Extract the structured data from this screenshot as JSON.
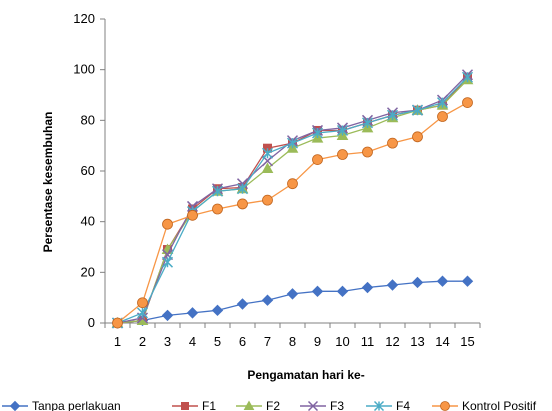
{
  "chart_data": {
    "type": "line",
    "title": "",
    "xlabel": "Pengamatan  hari ke-",
    "ylabel": "Persentase kesembuhan",
    "x": [
      1,
      2,
      3,
      4,
      5,
      6,
      7,
      8,
      9,
      10,
      11,
      12,
      13,
      14,
      15
    ],
    "ylim": [
      0,
      120
    ],
    "yticks": [
      0,
      20,
      40,
      60,
      80,
      100,
      120
    ],
    "grid": false,
    "legend_position": "bottom",
    "series": [
      {
        "name": "Tanpa perlakuan",
        "color": "#4472C4",
        "marker": "diamond",
        "values": [
          0,
          1,
          3,
          4,
          5,
          7.5,
          9,
          11.5,
          12.5,
          12.5,
          14,
          15,
          16,
          16.5,
          16.5
        ]
      },
      {
        "name": "F1",
        "color": "#C0504D",
        "marker": "square",
        "values": [
          0,
          1,
          29,
          45,
          53,
          53.5,
          69,
          71,
          76,
          76,
          79,
          82,
          84,
          86,
          97
        ]
      },
      {
        "name": "F2",
        "color": "#9BBB59",
        "marker": "triangle",
        "values": [
          0,
          1,
          29,
          44,
          52,
          53,
          61,
          69,
          73,
          74,
          77,
          81,
          84,
          86,
          96
        ]
      },
      {
        "name": "F3",
        "color": "#8064A2",
        "marker": "x",
        "values": [
          0,
          2,
          27,
          46,
          53,
          55,
          64,
          72,
          76,
          77,
          80,
          83,
          84,
          88,
          98
        ]
      },
      {
        "name": "F4",
        "color": "#4BACC6",
        "marker": "asterisk",
        "values": [
          0,
          4,
          24,
          44,
          52,
          53,
          67,
          71,
          75,
          76,
          79,
          82,
          84,
          87,
          97
        ]
      },
      {
        "name": "Kontrol Positif",
        "color": "#F79646",
        "marker": "circle",
        "values": [
          0,
          8,
          39,
          42.5,
          45,
          47,
          48.5,
          55,
          64.5,
          66.5,
          67.5,
          71,
          73.5,
          81.5,
          87
        ]
      }
    ]
  }
}
